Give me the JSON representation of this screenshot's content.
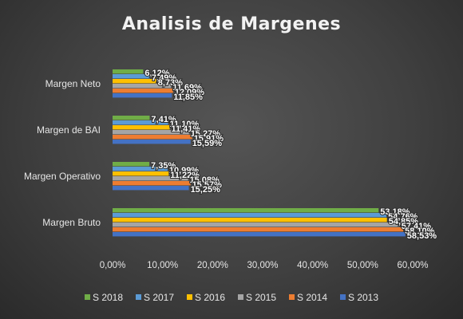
{
  "chart_data": {
    "type": "bar",
    "orientation": "horizontal",
    "title": "Analisis de Margenes",
    "categories": [
      "Margen Neto",
      "Margen de BAI",
      "Margen Operativo",
      "Margen Bruto"
    ],
    "series": [
      {
        "name": "S 2018",
        "color": "#70ad47",
        "values": [
          6.12,
          7.41,
          7.35,
          53.18
        ],
        "labels": [
          "6,12%",
          "7,41%",
          "7,35%",
          "53,18%"
        ]
      },
      {
        "name": "S 2017",
        "color": "#5b9bd5",
        "values": [
          7.49,
          11.1,
          10.99,
          54.76
        ],
        "labels": [
          "7,49%",
          "11,10%",
          "10,99%",
          "54,76%"
        ]
      },
      {
        "name": "S 2016",
        "color": "#ffc000",
        "values": [
          8.73,
          11.41,
          11.22,
          54.85
        ],
        "labels": [
          "8,73%",
          "11,41%",
          "11,22%",
          "54,85%"
        ]
      },
      {
        "name": "S 2015",
        "color": "#a5a5a5",
        "values": [
          11.69,
          15.27,
          15.08,
          57.41
        ],
        "labels": [
          "11,69%",
          "15,27%",
          "15,08%",
          "57,41%"
        ]
      },
      {
        "name": "S 2014",
        "color": "#ed7d31",
        "values": [
          12.09,
          15.91,
          15.57,
          58.1
        ],
        "labels": [
          "12,09%",
          "15,91%",
          "15,57%",
          "58,10%"
        ]
      },
      {
        "name": "S 2013",
        "color": "#4472c4",
        "values": [
          11.85,
          15.59,
          15.25,
          58.53
        ],
        "labels": [
          "11,85%",
          "15,59%",
          "15,25%",
          "58,53%"
        ]
      }
    ],
    "xlim": [
      0,
      60
    ],
    "xticks": [
      "0,00%",
      "10,00%",
      "20,00%",
      "30,00%",
      "40,00%",
      "50,00%",
      "60,00%"
    ],
    "xlabel": "",
    "ylabel": "",
    "grid": false,
    "legend_position": "bottom"
  }
}
